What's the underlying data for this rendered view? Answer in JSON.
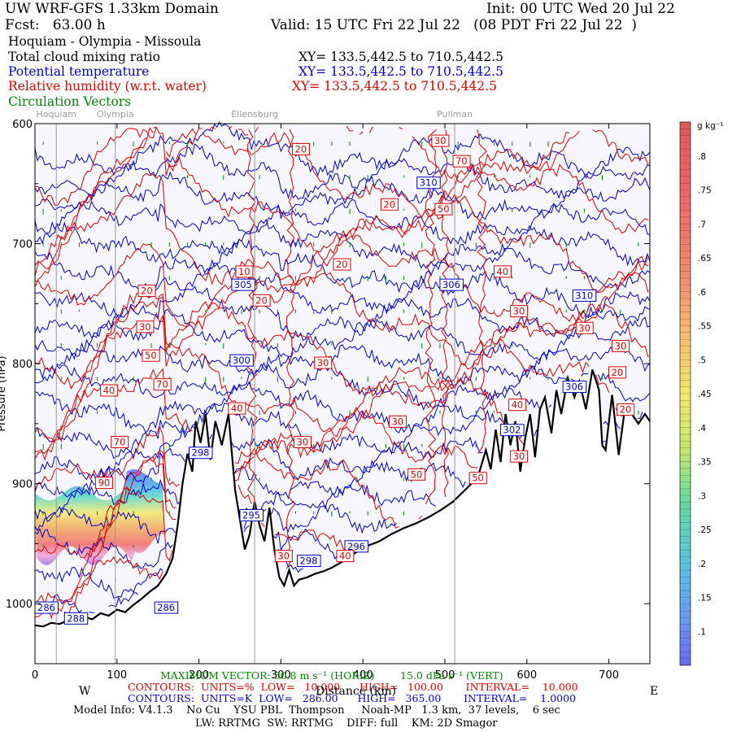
{
  "header": {
    "domain_title": "UW WRF-GFS 1.33km Domain",
    "init": "Init: 00 UTC Wed 20 Jul 22",
    "fcst": "Fcst:   63.00 h",
    "valid": "Valid: 15 UTC Fri 22 Jul 22   (08 PDT Fri 22 Jul 22  )",
    "route": "Hoquiam - Olympia - Missoula",
    "fields": [
      {
        "label": "Total cloud mixing ratio",
        "xy": "XY= 133.5,442.5 to 710.5,442.5",
        "color": "#000000"
      },
      {
        "label": "Potential temperature",
        "xy": "XY= 133.5,442.5 to 710.5,442.5",
        "color": "#0000cc"
      },
      {
        "label": "Relative humidity (w.r.t. water)",
        "xy": "XY= 133.5,442.5 to 710.5,442.5",
        "color": "#dd0000"
      },
      {
        "label": "Circulation Vectors",
        "xy": "",
        "color": "#008800"
      }
    ]
  },
  "footer": {
    "max_vector": "MAXIMUM VECTOR: 30.8 m s⁻¹ (HORIZ)        15.0 dPa s⁻¹ (VERT)",
    "rh_contours": "CONTOURS:  UNITS=%  LOW=   10.000      HIGH=   100.00       INTERVAL=    10.000",
    "theta_contours": "CONTOURS:  UNITS=K  LOW=   286.00      HIGH=   365.00       INTERVAL=    1.0000",
    "west": "W",
    "east": "E",
    "xaxis_title": "Distance (km)",
    "model_info": "Model Info: V4.1.3    No Cu    YSU PBL  Thompson     Noah-MP   1.3 km,  37 levels,    6 sec",
    "model_info2": "LW: RRTMG  SW: RRTMG    DIFF: full    KM: 2D Smagor"
  },
  "chart_data": {
    "type": "cross-section",
    "x_axis": {
      "range": [
        0,
        750
      ],
      "ticks": [
        0,
        100,
        200,
        300,
        400,
        500,
        600,
        700
      ]
    },
    "y_axis": {
      "label": "Pressure (hPa)",
      "range": [
        600,
        1050
      ],
      "ticks": [
        600,
        700,
        800,
        900,
        1000
      ],
      "tick_labels": [
        "600",
        "700",
        "800",
        "900",
        "1000"
      ]
    },
    "locations": [
      {
        "name": "Hoquiam",
        "x": 26
      },
      {
        "name": "Olympia",
        "x": 98
      },
      {
        "name": "Ellensburg",
        "x": 268
      },
      {
        "name": "Pullman",
        "x": 512
      }
    ],
    "terrain": [
      [
        0,
        1018
      ],
      [
        10,
        1019
      ],
      [
        20,
        1016
      ],
      [
        30,
        1017
      ],
      [
        40,
        1014
      ],
      [
        50,
        1015
      ],
      [
        60,
        1011
      ],
      [
        70,
        1013
      ],
      [
        80,
        1008
      ],
      [
        90,
        1010
      ],
      [
        100,
        1005
      ],
      [
        110,
        1007
      ],
      [
        120,
        1001
      ],
      [
        130,
        996
      ],
      [
        140,
        990
      ],
      [
        150,
        985
      ],
      [
        160,
        975
      ],
      [
        168,
        962
      ],
      [
        174,
        935
      ],
      [
        180,
        900
      ],
      [
        186,
        875
      ],
      [
        192,
        890
      ],
      [
        196,
        848
      ],
      [
        202,
        866
      ],
      [
        208,
        842
      ],
      [
        214,
        880
      ],
      [
        220,
        848
      ],
      [
        228,
        868
      ],
      [
        236,
        842
      ],
      [
        244,
        905
      ],
      [
        250,
        930
      ],
      [
        256,
        955
      ],
      [
        262,
        942
      ],
      [
        268,
        915
      ],
      [
        274,
        935
      ],
      [
        280,
        948
      ],
      [
        286,
        920
      ],
      [
        292,
        955
      ],
      [
        298,
        978
      ],
      [
        304,
        985
      ],
      [
        310,
        972
      ],
      [
        316,
        985
      ],
      [
        322,
        980
      ],
      [
        332,
        978
      ],
      [
        342,
        975
      ],
      [
        352,
        973
      ],
      [
        362,
        970
      ],
      [
        375,
        965
      ],
      [
        390,
        958
      ],
      [
        405,
        952
      ],
      [
        420,
        948
      ],
      [
        435,
        942
      ],
      [
        450,
        937
      ],
      [
        465,
        933
      ],
      [
        480,
        928
      ],
      [
        495,
        922
      ],
      [
        510,
        915
      ],
      [
        525,
        905
      ],
      [
        540,
        895
      ],
      [
        550,
        872
      ],
      [
        556,
        888
      ],
      [
        562,
        855
      ],
      [
        568,
        882
      ],
      [
        574,
        842
      ],
      [
        580,
        868
      ],
      [
        586,
        848
      ],
      [
        592,
        890
      ],
      [
        598,
        862
      ],
      [
        604,
        842
      ],
      [
        610,
        878
      ],
      [
        616,
        838
      ],
      [
        622,
        828
      ],
      [
        630,
        858
      ],
      [
        636,
        822
      ],
      [
        642,
        842
      ],
      [
        650,
        812
      ],
      [
        658,
        828
      ],
      [
        664,
        815
      ],
      [
        672,
        838
      ],
      [
        680,
        805
      ],
      [
        688,
        822
      ],
      [
        692,
        868
      ],
      [
        696,
        872
      ],
      [
        704,
        826
      ],
      [
        712,
        876
      ],
      [
        720,
        835
      ],
      [
        728,
        842
      ],
      [
        736,
        850
      ],
      [
        744,
        842
      ],
      [
        750,
        848
      ]
    ],
    "theta_labels": [
      {
        "x": 0,
        "p": 1006,
        "text": "286"
      },
      {
        "x": 146,
        "p": 1006,
        "text": "286"
      },
      {
        "x": 36,
        "p": 1015,
        "text": "288"
      },
      {
        "x": 378,
        "p": 955,
        "text": "296"
      },
      {
        "x": 320,
        "p": 967,
        "text": "298"
      },
      {
        "x": 250,
        "p": 929,
        "text": "295"
      },
      {
        "x": 238,
        "p": 800,
        "text": "300"
      },
      {
        "x": 188,
        "p": 877,
        "text": "298"
      },
      {
        "x": 568,
        "p": 858,
        "text": "302"
      },
      {
        "x": 240,
        "p": 737,
        "text": "305"
      },
      {
        "x": 494,
        "p": 737,
        "text": "306"
      },
      {
        "x": 466,
        "p": 652,
        "text": "310"
      },
      {
        "x": 656,
        "p": 746,
        "text": "310"
      },
      {
        "x": 644,
        "p": 822,
        "text": "306"
      }
    ],
    "rh_labels": [
      {
        "x": 314,
        "p": 624,
        "text": "20"
      },
      {
        "x": 484,
        "p": 617,
        "text": "30"
      },
      {
        "x": 510,
        "p": 634,
        "text": "70"
      },
      {
        "x": 422,
        "p": 670,
        "text": "20"
      },
      {
        "x": 488,
        "p": 674,
        "text": "50"
      },
      {
        "x": 364,
        "p": 720,
        "text": "20"
      },
      {
        "x": 245,
        "p": 726,
        "text": "10"
      },
      {
        "x": 266,
        "p": 750,
        "text": "20"
      },
      {
        "x": 560,
        "p": 726,
        "text": "40"
      },
      {
        "x": 126,
        "p": 742,
        "text": "20"
      },
      {
        "x": 124,
        "p": 772,
        "text": "30"
      },
      {
        "x": 131,
        "p": 796,
        "text": "50"
      },
      {
        "x": 145,
        "p": 820,
        "text": "70"
      },
      {
        "x": 80,
        "p": 825,
        "text": "40"
      },
      {
        "x": 341,
        "p": 802,
        "text": "30"
      },
      {
        "x": 580,
        "p": 759,
        "text": "30"
      },
      {
        "x": 660,
        "p": 773,
        "text": "30"
      },
      {
        "x": 704,
        "p": 788,
        "text": "30"
      },
      {
        "x": 700,
        "p": 810,
        "text": "20"
      },
      {
        "x": 578,
        "p": 837,
        "text": "40"
      },
      {
        "x": 710,
        "p": 841,
        "text": "20"
      },
      {
        "x": 432,
        "p": 851,
        "text": "30"
      },
      {
        "x": 316,
        "p": 868,
        "text": "30"
      },
      {
        "x": 93,
        "p": 868,
        "text": "70"
      },
      {
        "x": 74,
        "p": 902,
        "text": "90"
      },
      {
        "x": 455,
        "p": 895,
        "text": "50"
      },
      {
        "x": 530,
        "p": 898,
        "text": "50"
      },
      {
        "x": 580,
        "p": 880,
        "text": "30"
      },
      {
        "x": 236,
        "p": 840,
        "text": "40"
      },
      {
        "x": 293,
        "p": 963,
        "text": "30"
      },
      {
        "x": 368,
        "p": 963,
        "text": "40"
      }
    ],
    "colorbar": {
      "unit": "g kg⁻¹",
      "range": [
        0.05,
        0.85
      ],
      "ticks": [
        ".1",
        ".15",
        ".2",
        ".25",
        ".3",
        ".35",
        ".4",
        ".45",
        ".5",
        ".55",
        ".6",
        ".65",
        ".7",
        ".75",
        ".8"
      ],
      "tick_values": [
        0.1,
        0.15,
        0.2,
        0.25,
        0.3,
        0.35,
        0.4,
        0.45,
        0.5,
        0.55,
        0.6,
        0.65,
        0.7,
        0.75,
        0.8
      ]
    }
  }
}
